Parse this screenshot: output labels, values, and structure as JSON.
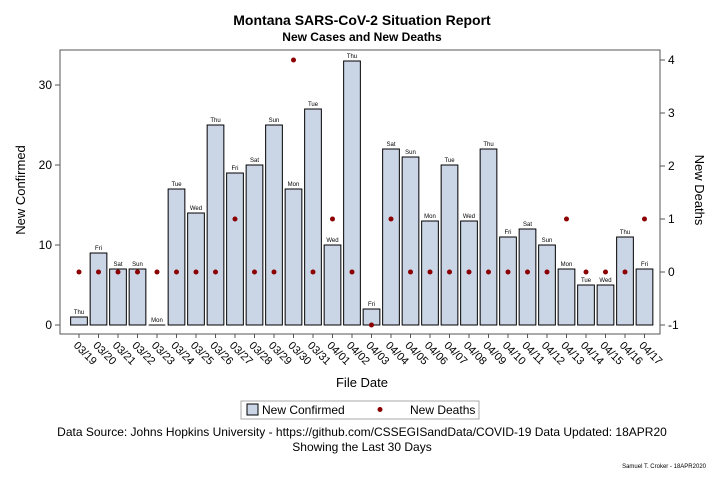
{
  "chart_data": {
    "type": "bar",
    "title": "Montana SARS-CoV-2 Situation Report",
    "subtitle": "New Cases and New Deaths",
    "xlabel": "File Date",
    "ylabel": "New Confirmed",
    "y2label": "New Deaths",
    "ylim": [
      0,
      34
    ],
    "y2lim": [
      -1,
      4
    ],
    "yticks": [
      0,
      10,
      20,
      30
    ],
    "y2ticks": [
      -1,
      0,
      1,
      2,
      3,
      4
    ],
    "categories": [
      "03/19",
      "03/20",
      "03/21",
      "03/22",
      "03/23",
      "03/24",
      "03/25",
      "03/26",
      "03/27",
      "03/28",
      "03/29",
      "03/30",
      "03/31",
      "04/01",
      "04/02",
      "04/03",
      "04/04",
      "04/05",
      "04/06",
      "04/07",
      "04/08",
      "04/09",
      "04/10",
      "04/11",
      "04/12",
      "04/13",
      "04/14",
      "04/15",
      "04/16",
      "04/17"
    ],
    "day_labels": [
      "Thu",
      "Fri",
      "Sat",
      "Sun",
      "Mon",
      "Tue",
      "Wed",
      "Thu",
      "Fri",
      "Sat",
      "Sun",
      "Mon",
      "Tue",
      "Wed",
      "Thu",
      "Fri",
      "Sat",
      "Sun",
      "Mon",
      "Tue",
      "Wed",
      "Thu",
      "Fri",
      "Sat",
      "Sun",
      "Mon",
      "Tue",
      "Wed",
      "Thu",
      "Fri"
    ],
    "series": [
      {
        "name": "New Confirmed",
        "axis": "left",
        "kind": "bar",
        "color": "#cad5e5",
        "values": [
          1,
          9,
          7,
          7,
          0,
          17,
          14,
          25,
          19,
          20,
          25,
          17,
          27,
          10,
          33,
          2,
          22,
          21,
          13,
          20,
          13,
          22,
          11,
          12,
          10,
          7,
          5,
          5,
          11,
          7
        ]
      },
      {
        "name": "New Deaths",
        "axis": "right",
        "kind": "scatter",
        "color": "#8b0000",
        "values": [
          0,
          0,
          0,
          0,
          0,
          0,
          0,
          0,
          1,
          0,
          0,
          4,
          0,
          1,
          0,
          -1,
          1,
          0,
          0,
          0,
          0,
          0,
          0,
          0,
          0,
          1,
          0,
          0,
          0,
          1
        ]
      }
    ],
    "legend_position": "bottom",
    "grid": false
  },
  "footnote": {
    "line1": "Data Source: Johns Hopkins University - https://github.com/CSSEGISandData/COVID-19 Data Updated: 18APR20",
    "line2": "Showing the Last 30 Days",
    "credit": "Samuel T. Croker - 18APR2020"
  },
  "colors": {
    "bar_fill": "#cad5e5",
    "bar_stroke": "#000000",
    "marker": "#8b0000",
    "axis": "#555555"
  }
}
